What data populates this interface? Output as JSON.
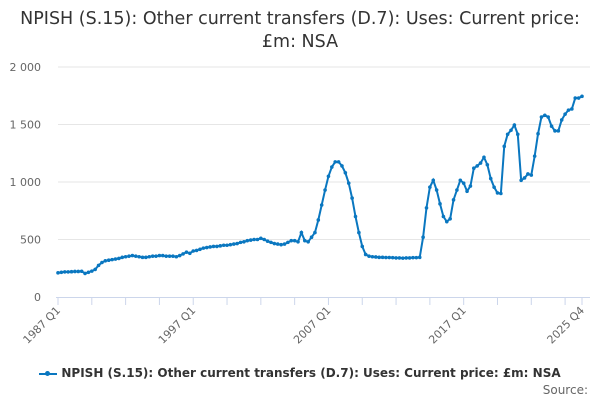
{
  "chart_data": {
    "type": "line",
    "title": "NPISH (S.15): Other current transfers (D.7): Uses: Current price: £m: NSA",
    "xlabel": "",
    "ylabel": "",
    "ylim": [
      0,
      2000
    ],
    "yticks": [
      0,
      500,
      1000,
      1500,
      2000
    ],
    "ytick_labels": [
      "0",
      "500",
      "1 000",
      "1 500",
      "2 000"
    ],
    "x_start": "1987 Q1",
    "x_end": "2025 Q4",
    "frequency": "quarterly",
    "xtick_labels": [
      "1987 Q1",
      "1997 Q1",
      "2007 Q1",
      "2017 Q1",
      "2025 Q4"
    ],
    "grid": "horizontal",
    "legend_position": "bottom",
    "color": "#0a77c0",
    "series": [
      {
        "name": "NPISH (S.15): Other current transfers (D.7): Uses: Current price: £m: NSA",
        "values": [
          210,
          215,
          218,
          218,
          220,
          222,
          222,
          224,
          205,
          215,
          225,
          240,
          275,
          300,
          315,
          320,
          325,
          330,
          335,
          345,
          350,
          355,
          360,
          355,
          350,
          345,
          345,
          350,
          355,
          355,
          360,
          360,
          355,
          355,
          355,
          350,
          360,
          375,
          390,
          380,
          400,
          405,
          415,
          425,
          430,
          435,
          440,
          440,
          445,
          450,
          450,
          455,
          460,
          465,
          475,
          480,
          490,
          495,
          500,
          500,
          510,
          500,
          485,
          475,
          465,
          460,
          455,
          460,
          475,
          490,
          490,
          480,
          560,
          490,
          480,
          520,
          560,
          670,
          800,
          930,
          1050,
          1130,
          1175,
          1175,
          1140,
          1080,
          990,
          860,
          700,
          560,
          440,
          370,
          355,
          350,
          348,
          345,
          345,
          343,
          343,
          342,
          340,
          340,
          338,
          340,
          340,
          342,
          342,
          345,
          520,
          775,
          955,
          1015,
          930,
          810,
          700,
          655,
          680,
          845,
          930,
          1015,
          990,
          920,
          965,
          1120,
          1140,
          1165,
          1215,
          1150,
          1030,
          955,
          905,
          900,
          1310,
          1415,
          1450,
          1495,
          1415,
          1015,
          1035,
          1070,
          1060,
          1225,
          1420,
          1565,
          1580,
          1565,
          1485,
          1445,
          1445,
          1540,
          1590,
          1625,
          1635,
          1730,
          1730,
          1745
        ]
      }
    ]
  },
  "source_label": "Source:"
}
